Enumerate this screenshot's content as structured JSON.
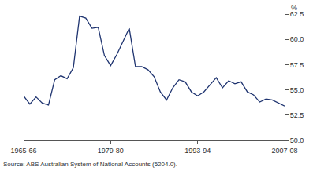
{
  "chart_data": {
    "type": "line",
    "categories": [
      "1965-66",
      null,
      null,
      null,
      null,
      null,
      null,
      null,
      null,
      null,
      null,
      null,
      null,
      null,
      "1979-80",
      null,
      null,
      null,
      null,
      null,
      null,
      null,
      null,
      null,
      null,
      null,
      null,
      null,
      "1993-94",
      null,
      null,
      null,
      null,
      null,
      null,
      null,
      null,
      null,
      null,
      null,
      null,
      null,
      "2007-08"
    ],
    "values": [
      54.4,
      53.6,
      54.3,
      53.7,
      53.5,
      56.0,
      56.4,
      56.1,
      57.2,
      62.3,
      62.1,
      61.1,
      61.2,
      58.4,
      57.4,
      58.5,
      59.8,
      61.1,
      57.3,
      57.3,
      57.0,
      56.3,
      54.8,
      54.0,
      55.2,
      56.0,
      55.8,
      54.8,
      54.4,
      54.8,
      55.5,
      56.2,
      55.2,
      55.9,
      55.6,
      55.8,
      54.8,
      54.5,
      53.8,
      54.1,
      54.0,
      53.7,
      53.4
    ],
    "color": "#1f3470",
    "ylim": [
      50,
      62.5
    ],
    "yticks": [
      {
        "value": 50,
        "label": "50.0"
      },
      52.5,
      {
        "value": 55,
        "label": "55.0"
      },
      57.5,
      {
        "value": 60,
        "label": "60.0"
      },
      62.5
    ],
    "ylabel": "%",
    "source": "Source: ABS Australian System of National Accounts (5204.0).",
    "grid": false
  }
}
